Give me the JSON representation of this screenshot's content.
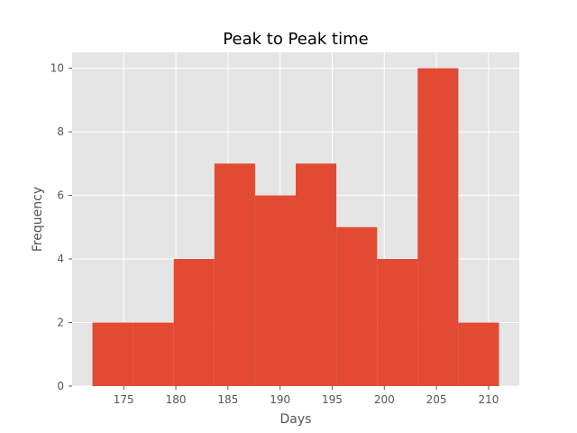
{
  "chart_data": {
    "type": "bar",
    "title": "Peak to Peak time",
    "xlabel": "Days",
    "ylabel": "Frequency",
    "bin_edges": [
      172.0,
      175.9,
      179.8,
      183.7,
      187.6,
      191.5,
      195.4,
      199.3,
      203.2,
      207.1,
      211.0
    ],
    "values": [
      2,
      2,
      4,
      7,
      6,
      7,
      5,
      4,
      10,
      2
    ],
    "xlim": [
      170.05,
      212.95
    ],
    "ylim": [
      0,
      10.5
    ],
    "xticks": [
      "175",
      "180",
      "185",
      "190",
      "195",
      "200",
      "205",
      "210"
    ],
    "yticks": [
      "0",
      "2",
      "4",
      "6",
      "8",
      "10"
    ],
    "grid": true,
    "colors": {
      "bar": "#E24A33",
      "axes_background": "#E5E5E5",
      "grid": "#FFFFFF",
      "tick_text": "#555555",
      "title_text": "#000000"
    }
  }
}
